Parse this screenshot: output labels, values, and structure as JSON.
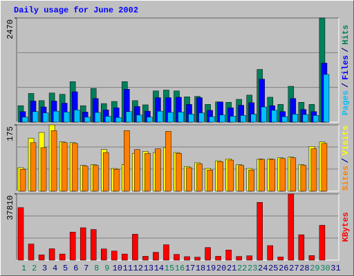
{
  "chart_data": [
    {
      "type": "bar",
      "title": "Daily usage for June 2002",
      "categories": [
        "1",
        "2",
        "3",
        "4",
        "5",
        "6",
        "7",
        "8",
        "9",
        "10",
        "11",
        "12",
        "13",
        "14",
        "15",
        "16",
        "17",
        "18",
        "19",
        "20",
        "21",
        "22",
        "23",
        "24",
        "25",
        "26",
        "27",
        "28",
        "29",
        "30",
        "31"
      ],
      "category_colors": [
        "#00805c",
        "#00805c",
        "#000080",
        "#000080",
        "#000080",
        "#000080",
        "#000080",
        "#00805c",
        "#00805c",
        "#000080",
        "#000080",
        "#000080",
        "#000080",
        "#000080",
        "#00805c",
        "#00805c",
        "#000080",
        "#000080",
        "#000080",
        "#000080",
        "#000080",
        "#00805c",
        "#00805c",
        "#000080",
        "#000080",
        "#000080",
        "#000080",
        "#000080",
        "#00805c",
        "#00805c",
        "#000080"
      ],
      "legend_separator": "/",
      "ylim": [
        0,
        2470
      ],
      "yticks": [
        2470
      ],
      "grid": true,
      "series": [
        {
          "name": "Pages",
          "color": "#00c0ff",
          "values": [
            120,
            250,
            220,
            260,
            240,
            290,
            120,
            230,
            140,
            110,
            250,
            170,
            120,
            260,
            230,
            240,
            190,
            220,
            130,
            170,
            140,
            160,
            190,
            360,
            280,
            130,
            190,
            180,
            160,
            1130,
            0
          ]
        },
        {
          "name": "Files",
          "color": "#0000ff",
          "values": [
            250,
            500,
            360,
            500,
            450,
            720,
            240,
            560,
            290,
            340,
            780,
            370,
            260,
            580,
            580,
            590,
            420,
            580,
            280,
            480,
            340,
            400,
            460,
            1020,
            390,
            250,
            560,
            300,
            250,
            1400,
            0
          ]
        },
        {
          "name": "Hits",
          "color": "#00805c",
          "values": [
            390,
            680,
            510,
            690,
            660,
            960,
            390,
            800,
            440,
            490,
            960,
            510,
            410,
            740,
            760,
            740,
            600,
            610,
            420,
            480,
            470,
            540,
            640,
            1250,
            590,
            420,
            850,
            470,
            420,
            2470,
            0
          ]
        }
      ]
    },
    {
      "type": "bar",
      "ylim": [
        0,
        175
      ],
      "yticks": [
        175
      ],
      "grid": true,
      "legend_separator": "/",
      "series": [
        {
          "name": "Sites",
          "color": "#ff8000",
          "values": [
            58,
            128,
            115,
            160,
            128,
            126,
            66,
            68,
            102,
            58,
            160,
            110,
            100,
            112,
            158,
            100,
            62,
            72,
            56,
            78,
            82,
            68,
            56,
            84,
            84,
            86,
            88,
            68,
            112,
            126,
            0
          ]
        },
        {
          "name": "Visits",
          "color": "#ffff00",
          "values": [
            62,
            140,
            155,
            175,
            130,
            128,
            68,
            70,
            110,
            60,
            70,
            100,
            105,
            102,
            115,
            102,
            65,
            75,
            60,
            80,
            85,
            70,
            60,
            85,
            85,
            88,
            90,
            70,
            118,
            130,
            0
          ]
        }
      ]
    },
    {
      "type": "bar",
      "ylim": [
        0,
        37810
      ],
      "yticks": [
        37810
      ],
      "grid": true,
      "series": [
        {
          "name": "KBytes",
          "color": "#ff0000",
          "values": [
            30000,
            9200,
            3000,
            6500,
            3500,
            16000,
            18500,
            17500,
            6400,
            5200,
            3500,
            14800,
            2200,
            4500,
            8800,
            3300,
            2000,
            1700,
            7200,
            2200,
            5800,
            2100,
            2500,
            33000,
            8300,
            1800,
            37810,
            14500,
            2600,
            19900,
            0
          ]
        }
      ]
    }
  ]
}
